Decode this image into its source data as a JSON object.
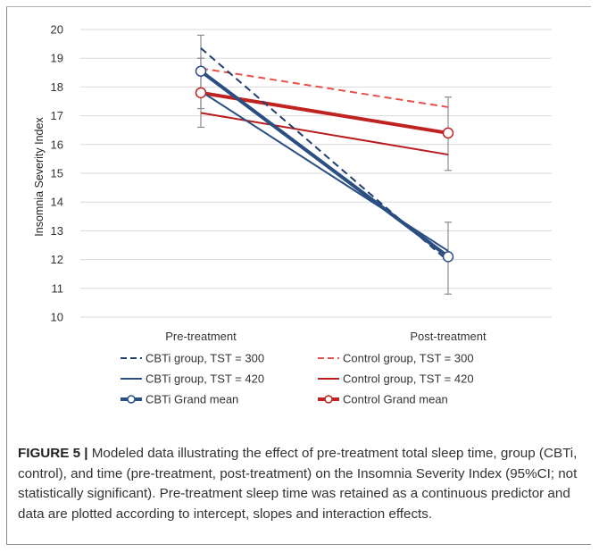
{
  "chart_data": {
    "type": "line",
    "ylabel": "Insomnia Severity Index",
    "xlabel": "",
    "categories": [
      "Pre-treatment",
      "Post-treatment"
    ],
    "ylim": [
      10,
      20
    ],
    "yticks": [
      "10",
      "11",
      "12",
      "13",
      "14",
      "15",
      "16",
      "17",
      "18",
      "19",
      "20"
    ],
    "grid": true,
    "legend_position": "bottom",
    "series": [
      {
        "name": "CBTi group, TST = 300",
        "values": [
          19.35,
          11.95
        ],
        "color": "#1f3f6e",
        "style": "dashed",
        "marker": "none",
        "width": "thin"
      },
      {
        "name": "Control group, TST = 300",
        "values": [
          18.65,
          17.3
        ],
        "color": "#e8504a",
        "style": "dashed",
        "marker": "none",
        "width": "thin"
      },
      {
        "name": "CBTi group, TST = 420",
        "values": [
          17.85,
          12.3
        ],
        "color": "#2a4e82",
        "style": "solid",
        "marker": "none",
        "width": "thin"
      },
      {
        "name": "Control group, TST = 420",
        "values": [
          17.1,
          15.65
        ],
        "color": "#b81c1c",
        "style": "solid",
        "marker": "none",
        "width": "thin"
      },
      {
        "name": "CBTi Grand mean",
        "values": [
          18.55,
          12.1
        ],
        "color": "#2a4e82",
        "style": "solid",
        "marker": "circle",
        "width": "thick",
        "error": [
          [
            17.25,
            19.8
          ],
          [
            10.8,
            13.3
          ]
        ]
      },
      {
        "name": "Control Grand mean",
        "values": [
          17.8,
          16.4
        ],
        "color": "#c0231f",
        "style": "solid",
        "marker": "circle",
        "width": "thick",
        "error": [
          [
            16.6,
            19.0
          ],
          [
            15.1,
            17.65
          ]
        ]
      }
    ]
  },
  "caption": {
    "figure_label": "FIGURE 5 |",
    "text": " Modeled data illustrating the effect of pre-treatment total sleep time, group (CBTi, control), and time (pre-treatment, post-treatment) on the Insomnia Severity Index (95%CI; not statistically significant). Pre-treatment sleep time was retained as a continuous predictor and data are plotted according to intercept, slopes and interaction effects."
  }
}
